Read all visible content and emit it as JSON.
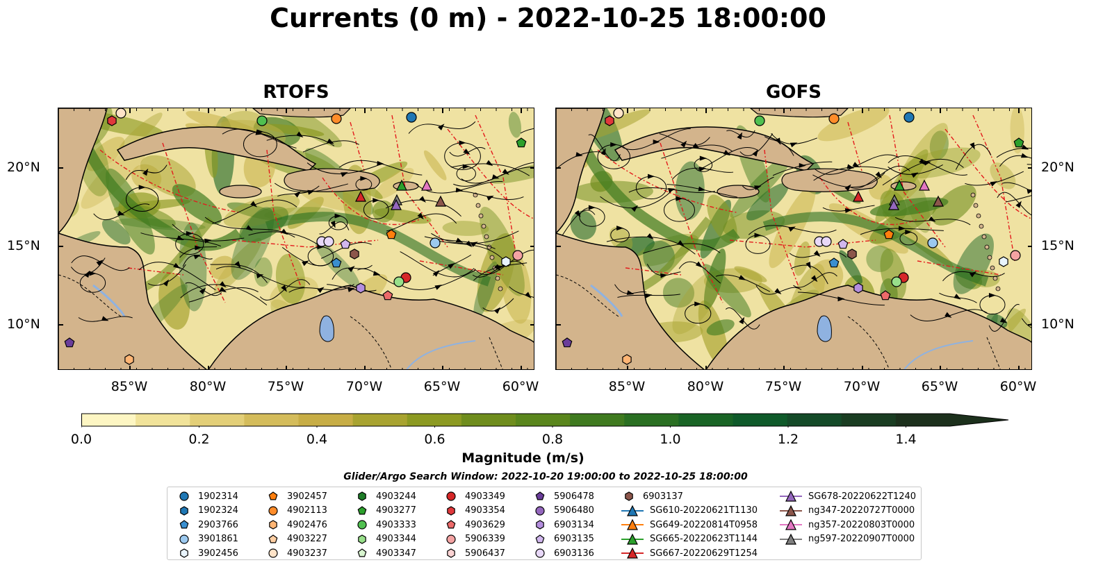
{
  "title": "Currents (0 m) - 2022-10-25 18:00:00",
  "panels": [
    {
      "title": "RTOFS"
    },
    {
      "title": "GOFS"
    }
  ],
  "lon_ticks": [
    "85°W",
    "80°W",
    "75°W",
    "70°W",
    "65°W",
    "60°W"
  ],
  "lat_ticks": [
    "20°N",
    "15°N",
    "10°N"
  ],
  "colorbar": {
    "label": "Magnitude (m/s)",
    "ticks": [
      "0.0",
      "0.2",
      "0.4",
      "0.6",
      "0.8",
      "1.0",
      "1.2",
      "1.4"
    ],
    "colors": [
      "#fdf6c3",
      "#f1e39a",
      "#e3cf78",
      "#d4bc5b",
      "#c7ad45",
      "#a8a330",
      "#8c9a22",
      "#6f8d1d",
      "#5a861c",
      "#3f7a1f",
      "#2a6f22",
      "#196425",
      "#0f5a2a",
      "#144a28",
      "#1a3d22",
      "#1c301c"
    ]
  },
  "search_window": "Glider/Argo Search Window: 2022-10-20 19:00:00 to 2022-10-25 18:00:00",
  "legend": [
    [
      {
        "label": "1902314",
        "marker": "circle",
        "color": "#1f77b4"
      },
      {
        "label": "1902324",
        "marker": "hexagon",
        "color": "#1f77b4"
      },
      {
        "label": "2903766",
        "marker": "pentagon",
        "color": "#3a8fd0"
      },
      {
        "label": "3901861",
        "marker": "circle",
        "color": "#9cc9ef"
      },
      {
        "label": "3902456",
        "marker": "hexagon",
        "color": "#e9f4fd"
      }
    ],
    [
      {
        "label": "3902457",
        "marker": "pentagon",
        "color": "#ff7f0e"
      },
      {
        "label": "4902113",
        "marker": "circle",
        "color": "#ff8c2a"
      },
      {
        "label": "4902476",
        "marker": "hexagon",
        "color": "#ffb574"
      },
      {
        "label": "4903227",
        "marker": "pentagon",
        "color": "#ffcfa3"
      },
      {
        "label": "4903237",
        "marker": "circle",
        "color": "#ffe3c8"
      }
    ],
    [
      {
        "label": "4903244",
        "marker": "hexagon",
        "color": "#1e7d28"
      },
      {
        "label": "4903277",
        "marker": "pentagon",
        "color": "#2ca02c"
      },
      {
        "label": "4903333",
        "marker": "circle",
        "color": "#50c050"
      },
      {
        "label": "4903344",
        "marker": "hexagon",
        "color": "#98df8a"
      },
      {
        "label": "4903347",
        "marker": "pentagon",
        "color": "#d8f5cf"
      }
    ],
    [
      {
        "label": "4903349",
        "marker": "circle",
        "color": "#d62728"
      },
      {
        "label": "4903354",
        "marker": "hexagon",
        "color": "#e0383b"
      },
      {
        "label": "4903629",
        "marker": "pentagon",
        "color": "#ec6a6a"
      },
      {
        "label": "5906339",
        "marker": "circle",
        "color": "#f4a3a3"
      },
      {
        "label": "5906437",
        "marker": "hexagon",
        "color": "#fbd3d3"
      }
    ],
    [
      {
        "label": "5906478",
        "marker": "pentagon",
        "color": "#6a3d9a"
      },
      {
        "label": "5906480",
        "marker": "circle",
        "color": "#9467bd"
      },
      {
        "label": "6903134",
        "marker": "hexagon",
        "color": "#b48ede"
      },
      {
        "label": "6903135",
        "marker": "pentagon",
        "color": "#d1b7ee"
      },
      {
        "label": "6903136",
        "marker": "circle",
        "color": "#e8d8f8"
      }
    ],
    [
      {
        "label": "6903137",
        "marker": "hexagon",
        "color": "#8c564b"
      },
      {
        "label": "SG610-20220621T1130",
        "marker": "triangle-line",
        "color": "#1f77b4"
      },
      {
        "label": "SG649-20220814T0958",
        "marker": "triangle-line",
        "color": "#ff7f0e"
      },
      {
        "label": "SG665-20220623T1144",
        "marker": "triangle-line",
        "color": "#2ca02c"
      },
      {
        "label": "SG667-20220629T1254",
        "marker": "triangle-line",
        "color": "#d62728"
      }
    ],
    [
      {
        "label": "SG678-20220622T1240",
        "marker": "triangle-line",
        "color": "#9467bd"
      },
      {
        "label": "ng347-20220727T0000",
        "marker": "triangle-line",
        "color": "#8c564b"
      },
      {
        "label": "ng357-20220803T0000",
        "marker": "triangle-line",
        "color": "#e377c2"
      },
      {
        "label": "ng597-20220907T0000",
        "marker": "triangle-line",
        "color": "#7f7f7f"
      }
    ]
  ]
}
